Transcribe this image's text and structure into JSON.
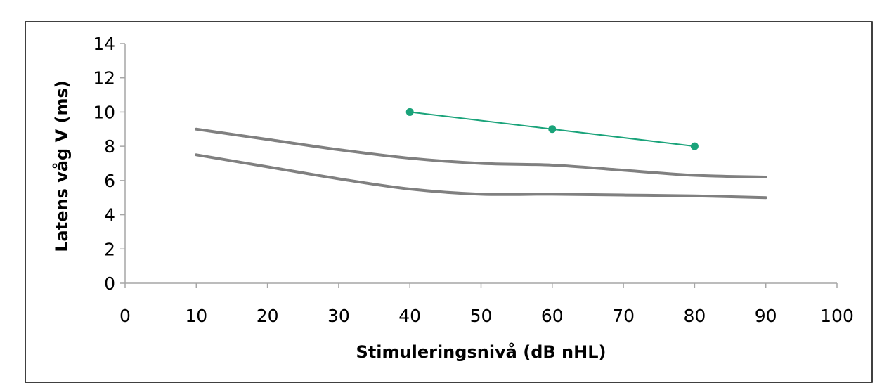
{
  "chart_data": {
    "type": "line",
    "title": "",
    "xlabel": "Stimuleringsnivå (dB nHL)",
    "ylabel": "Latens våg V (ms)",
    "xlim": [
      0,
      100
    ],
    "ylim": [
      0,
      14
    ],
    "x_ticks": [
      0,
      10,
      20,
      30,
      40,
      50,
      60,
      70,
      80,
      90,
      100
    ],
    "y_ticks": [
      0,
      2,
      4,
      6,
      8,
      10,
      12,
      14
    ],
    "grid": false,
    "legend": "none",
    "series": [
      {
        "kind": "norm-upper",
        "color": "#808080",
        "markers": false,
        "points": [
          [
            10,
            9.0
          ],
          [
            20,
            8.4
          ],
          [
            30,
            7.8
          ],
          [
            40,
            7.3
          ],
          [
            50,
            7.0
          ],
          [
            60,
            6.9
          ],
          [
            70,
            6.6
          ],
          [
            80,
            6.3
          ],
          [
            90,
            6.2
          ]
        ]
      },
      {
        "kind": "norm-lower",
        "color": "#808080",
        "markers": false,
        "points": [
          [
            10,
            7.5
          ],
          [
            20,
            6.8
          ],
          [
            30,
            6.1
          ],
          [
            40,
            5.5
          ],
          [
            50,
            5.2
          ],
          [
            60,
            5.2
          ],
          [
            70,
            5.15
          ],
          [
            80,
            5.1
          ],
          [
            90,
            5.0
          ]
        ]
      },
      {
        "kind": "measured",
        "color": "#1aa37a",
        "markers": true,
        "points": [
          [
            40,
            10
          ],
          [
            60,
            9
          ],
          [
            80,
            8
          ]
        ]
      }
    ]
  }
}
